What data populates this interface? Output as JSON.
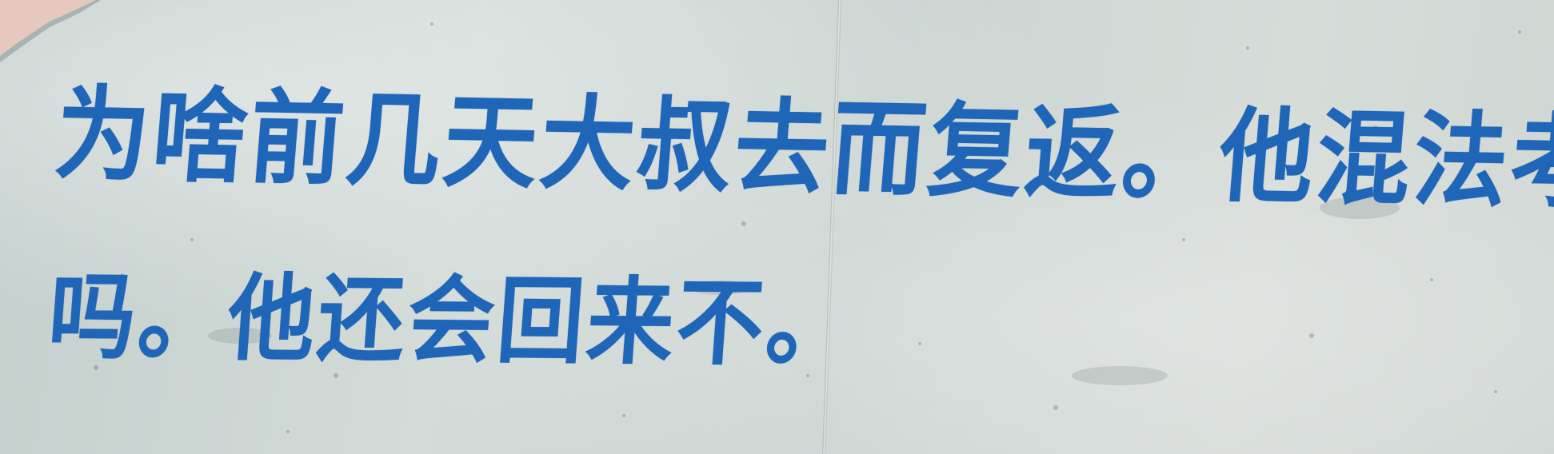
{
  "note": {
    "line1": "为啥前几天大叔去而复返。他混法考早完了",
    "line2": "吗。他还会回来不。"
  },
  "colors": {
    "ink": "#1f66b8",
    "paper": "#cfd6d3"
  }
}
